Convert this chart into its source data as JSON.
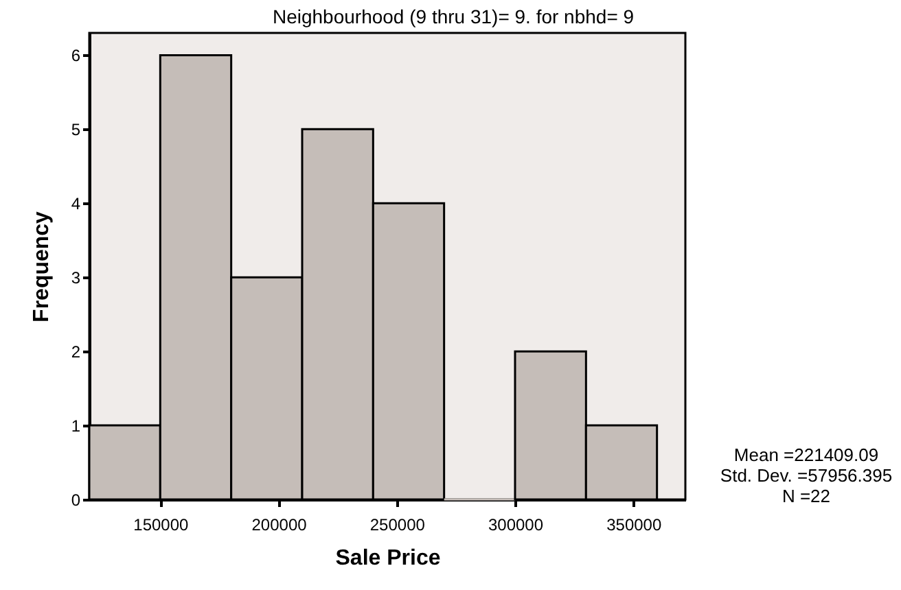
{
  "chart_data": {
    "type": "histogram",
    "title": "Neighbourhood (9 thru 31)= 9. for nbhd= 9",
    "xlabel": "Sale Price",
    "ylabel": "Frequency",
    "bins": [
      120000,
      150000,
      180000,
      210000,
      240000,
      270000,
      300000,
      330000,
      360000
    ],
    "values": [
      1,
      6,
      3,
      5,
      4,
      0,
      2,
      1
    ],
    "color": "#c5bdb8",
    "xlim": [
      120000,
      372000
    ],
    "xticks": [
      150000,
      200000,
      250000,
      300000,
      350000
    ],
    "ylim": [
      0,
      6.3
    ],
    "yticks": [
      0,
      1,
      2,
      3,
      4,
      5,
      6
    ],
    "grid": false,
    "annotations": [
      "Mean =221409.09",
      "Std. Dev. =57956.395",
      "N =22"
    ]
  }
}
